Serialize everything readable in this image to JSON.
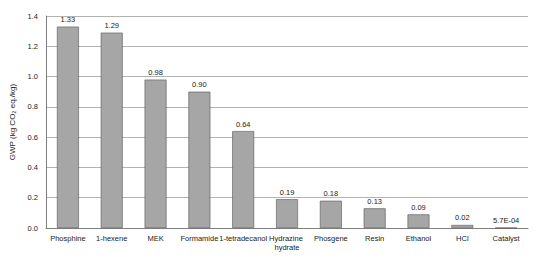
{
  "chart_data": {
    "type": "bar",
    "y_label": "GWP (kg CO₂ eq./kg)",
    "categories": [
      "Phosphine",
      "1-hexene",
      "MEK",
      "Formamide",
      "1-tetradecanol",
      "Hydrazine hydrate",
      "Phosgene",
      "Resin",
      "Ethanol",
      "HCl",
      "Catalyst"
    ],
    "values": [
      1.33,
      1.29,
      0.98,
      0.9,
      0.64,
      0.19,
      0.18,
      0.13,
      0.09,
      0.02,
      0.00057
    ],
    "value_labels": [
      "1.33",
      "1.29",
      "0.98",
      "0.90",
      "0.64",
      "0.19",
      "0.18",
      "0.13",
      "0.09",
      "0.02",
      "5.7E-04"
    ],
    "data_labels": true,
    "color": "#a6a6a6",
    "ylim": [
      0,
      1.4
    ],
    "yticks": [
      {
        "value": 0,
        "label": "0.0"
      },
      {
        "value": 0.2,
        "label": "0.2"
      },
      {
        "value": 0.4,
        "label": "0.4"
      },
      {
        "value": 0.6,
        "label": "0.6"
      },
      {
        "value": 0.8,
        "label": "0.8"
      },
      {
        "value": 1.0,
        "label": "1.0"
      },
      {
        "value": 1.2,
        "label": "1.2"
      },
      {
        "value": 1.4,
        "label": "1.4"
      }
    ],
    "grid": true
  }
}
